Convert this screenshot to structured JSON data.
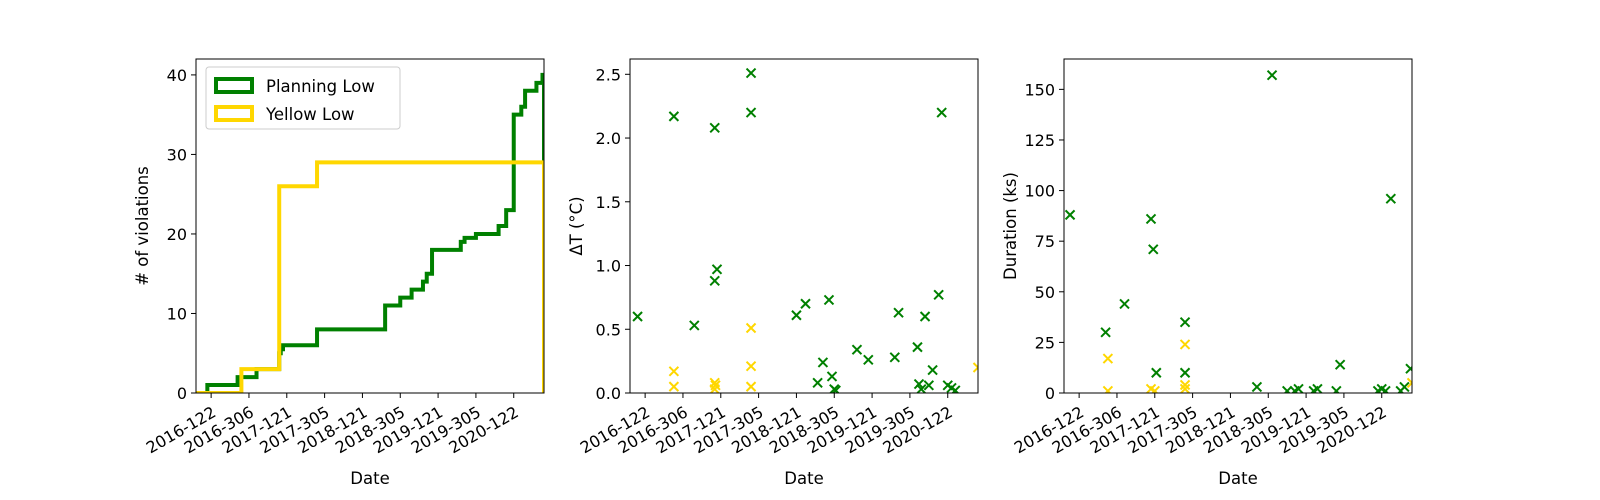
{
  "colors": {
    "planning_low": "#008000",
    "yellow_low": "#FFD700"
  },
  "chart_data": [
    {
      "type": "line",
      "step": true,
      "xlabel": "Date",
      "ylabel": "# of violations",
      "x_domain": [
        2016.8,
        2021.4
      ],
      "ylim": [
        0,
        42
      ],
      "yticks": [
        0,
        10,
        20,
        30,
        40
      ],
      "xticks": [
        {
          "label": "2016-122",
          "x": 2017.0
        },
        {
          "label": "2016-306",
          "x": 2017.5
        },
        {
          "label": "2017-121",
          "x": 2018.0
        },
        {
          "label": "2017-305",
          "x": 2018.5
        },
        {
          "label": "2018-121",
          "x": 2019.0
        },
        {
          "label": "2018-305",
          "x": 2019.5
        },
        {
          "label": "2019-121",
          "x": 2020.0
        },
        {
          "label": "2019-305",
          "x": 2020.5
        },
        {
          "label": "2020-122",
          "x": 2021.0
        }
      ],
      "legend": {
        "placement": "top-left",
        "entries": [
          "Planning Low",
          "Yellow Low"
        ]
      },
      "series": [
        {
          "name": "Planning Low",
          "color_key": "planning_low",
          "x": [
            2016.8,
            2016.95,
            2017.35,
            2017.6,
            2017.9,
            2017.92,
            2017.95,
            2018.4,
            2019.3,
            2019.5,
            2019.65,
            2019.8,
            2019.85,
            2019.92,
            2019.95,
            2020.0,
            2020.3,
            2020.35,
            2020.5,
            2020.8,
            2020.9,
            2021.0,
            2021.02,
            2021.1,
            2021.15,
            2021.2,
            2021.3,
            2021.38,
            2021.4
          ],
          "y": [
            0,
            1,
            2,
            3,
            5,
            5.5,
            6,
            8,
            11,
            12,
            13,
            14,
            15,
            18,
            18,
            18,
            19,
            19.5,
            20,
            21,
            23,
            35,
            35,
            36,
            38,
            38,
            39,
            40,
            29
          ]
        },
        {
          "name": "Yellow Low",
          "color_key": "yellow_low",
          "x": [
            2016.8,
            2017.4,
            2017.9,
            2018.4,
            2021.4
          ],
          "y": [
            0,
            3,
            26,
            29,
            0
          ]
        }
      ]
    },
    {
      "type": "scatter",
      "marker": "x",
      "xlabel": "Date",
      "ylabel": "ΔT (°C)",
      "x_domain": [
        2016.8,
        2021.4
      ],
      "ylim": [
        0,
        2.62
      ],
      "yticks": [
        "0.0",
        "0.5",
        "1.0",
        "1.5",
        "2.0",
        "2.5"
      ],
      "xticks": [
        {
          "label": "2016-122",
          "x": 2017.0
        },
        {
          "label": "2016-306",
          "x": 2017.5
        },
        {
          "label": "2017-121",
          "x": 2018.0
        },
        {
          "label": "2017-305",
          "x": 2018.5
        },
        {
          "label": "2018-121",
          "x": 2019.0
        },
        {
          "label": "2018-305",
          "x": 2019.5
        },
        {
          "label": "2019-121",
          "x": 2020.0
        },
        {
          "label": "2019-305",
          "x": 2020.5
        },
        {
          "label": "2020-122",
          "x": 2021.0
        }
      ],
      "series": [
        {
          "color_key": "planning_low",
          "x": [
            2016.9,
            2017.38,
            2017.65,
            2017.92,
            2017.92,
            2017.95,
            2018.4,
            2018.4,
            2019.0,
            2019.12,
            2019.28,
            2019.35,
            2019.43,
            2019.47,
            2019.5,
            2019.52,
            2019.8,
            2019.95,
            2020.3,
            2020.35,
            2020.6,
            2020.62,
            2020.65,
            2020.7,
            2020.75,
            2020.8,
            2020.88,
            2020.92,
            2021.0,
            2021.05,
            2021.1
          ],
          "y": [
            0.6,
            2.17,
            0.53,
            2.08,
            0.88,
            0.97,
            2.51,
            2.2,
            0.61,
            0.7,
            0.08,
            0.24,
            0.73,
            0.13,
            0.03,
            0.02,
            0.34,
            0.26,
            0.28,
            0.63,
            0.36,
            0.07,
            0.03,
            0.6,
            0.06,
            0.18,
            0.77,
            2.2,
            0.06,
            0.04,
            0.02
          ]
        },
        {
          "color_key": "yellow_low",
          "x": [
            2017.38,
            2017.38,
            2017.92,
            2017.93,
            2017.92,
            2018.4,
            2018.4,
            2018.4,
            2021.4
          ],
          "y": [
            0.17,
            0.05,
            0.08,
            0.06,
            0.03,
            0.51,
            0.21,
            0.05,
            0.2
          ]
        }
      ]
    },
    {
      "type": "scatter",
      "marker": "x",
      "xlabel": "Date",
      "ylabel": "Duration (ks)",
      "x_domain": [
        2016.8,
        2021.4
      ],
      "ylim": [
        0,
        165
      ],
      "yticks": [
        0,
        25,
        50,
        75,
        100,
        125,
        150
      ],
      "xticks": [
        {
          "label": "2016-122",
          "x": 2017.0
        },
        {
          "label": "2016-306",
          "x": 2017.5
        },
        {
          "label": "2017-121",
          "x": 2018.0
        },
        {
          "label": "2017-305",
          "x": 2018.5
        },
        {
          "label": "2018-121",
          "x": 2019.0
        },
        {
          "label": "2018-305",
          "x": 2019.5
        },
        {
          "label": "2019-121",
          "x": 2020.0
        },
        {
          "label": "2019-305",
          "x": 2020.5
        },
        {
          "label": "2020-122",
          "x": 2021.0
        }
      ],
      "series": [
        {
          "color_key": "planning_low",
          "x": [
            2016.88,
            2017.35,
            2017.6,
            2017.95,
            2017.98,
            2018.02,
            2018.4,
            2018.4,
            2019.35,
            2019.55,
            2019.75,
            2019.85,
            2019.9,
            2020.1,
            2020.15,
            2020.4,
            2020.45,
            2020.95,
            2021.0,
            2021.05,
            2021.12,
            2021.25,
            2021.3,
            2021.38
          ],
          "y": [
            88,
            30,
            44,
            86,
            71,
            10,
            35,
            10,
            3,
            157,
            1,
            1,
            2,
            1,
            2,
            1,
            14,
            1,
            2,
            1,
            96,
            1,
            3,
            12
          ]
        },
        {
          "color_key": "yellow_low",
          "x": [
            2017.38,
            2017.38,
            2017.95,
            2018.0,
            2018.4,
            2018.4,
            2018.4,
            2021.4
          ],
          "y": [
            17,
            1,
            2,
            1,
            24,
            4,
            2,
            5
          ]
        }
      ]
    }
  ]
}
